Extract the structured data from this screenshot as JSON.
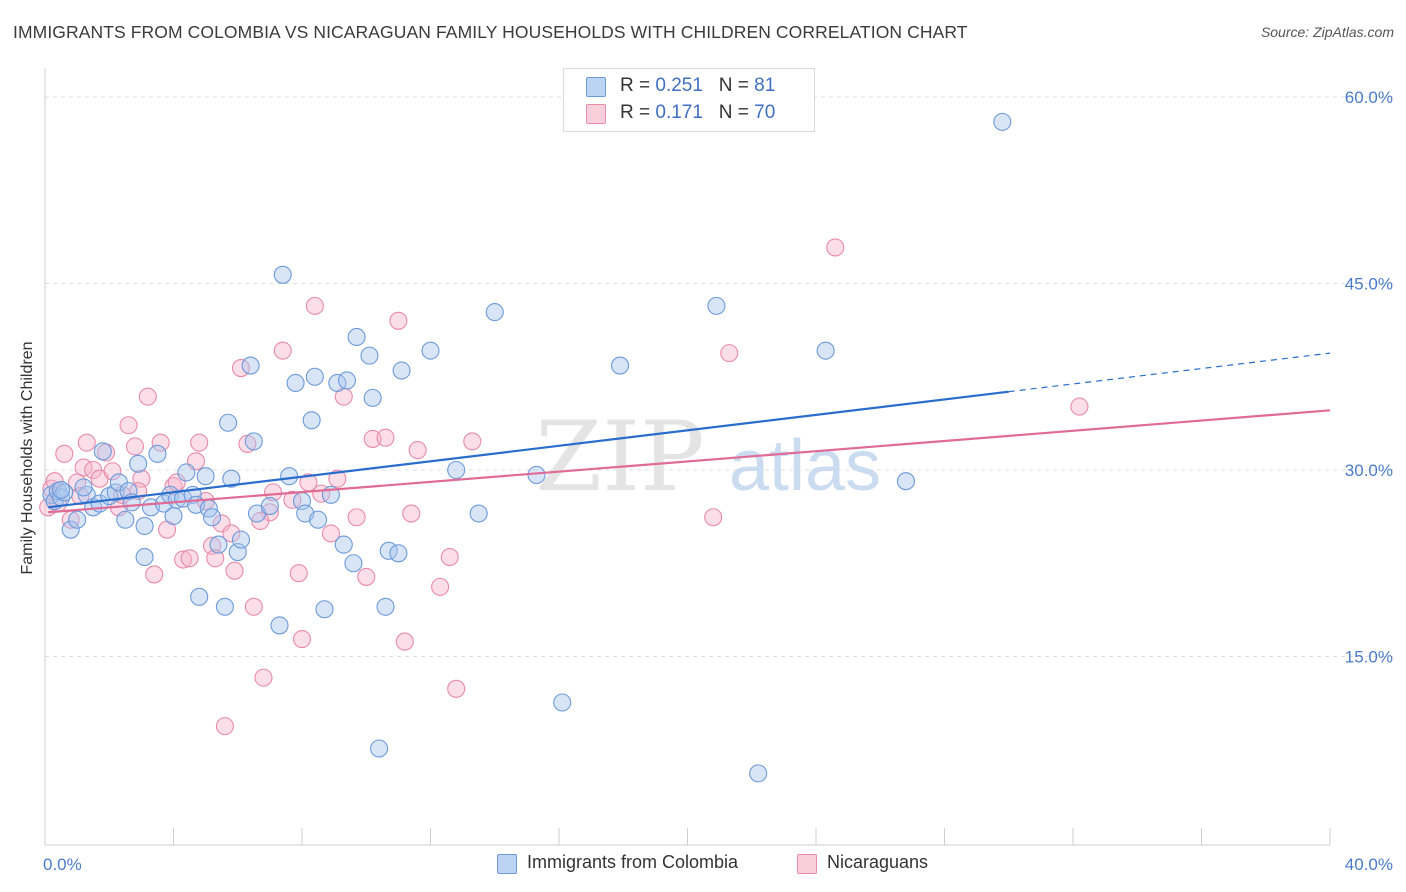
{
  "header": {
    "title": "IMMIGRANTS FROM COLOMBIA VS NICARAGUAN FAMILY HOUSEHOLDS WITH CHILDREN CORRELATION CHART",
    "source": "Source: ZipAtlas.com"
  },
  "legend_top": {
    "rows": [
      {
        "r_label": "R =",
        "r_value": "0.251",
        "n_label": "N =",
        "n_value": "81"
      },
      {
        "r_label": "R =",
        "r_value": "0.171",
        "n_label": "N =",
        "n_value": "70"
      }
    ]
  },
  "watermark": {
    "zip": "ZIP",
    "atlas": "atlas"
  },
  "colors": {
    "blue_fill": "#a9c6ee",
    "blue_stroke": "#6d9ad9",
    "blue_line": "#2a6dcc",
    "pink_fill": "#f6b6cb",
    "pink_stroke": "#e88aaa",
    "pink_line": "#e06b96",
    "axis_text": "#4a7cc9",
    "grid": "#dedede"
  },
  "chart_data": {
    "type": "scatter",
    "title": "IMMIGRANTS FROM COLOMBIA VS NICARAGUAN FAMILY HOUSEHOLDS WITH CHILDREN CORRELATION CHART",
    "xlabel": "",
    "ylabel": "Family Households with Children",
    "xlim": [
      0,
      40
    ],
    "ylim": [
      0,
      60
    ],
    "x_tick_labels": [
      "0.0%",
      "40.0%"
    ],
    "y_ticks": [
      15,
      30,
      45,
      60
    ],
    "y_tick_labels": [
      "15.0%",
      "30.0%",
      "45.0%",
      "60.0%"
    ],
    "grid": true,
    "legend_placement": "top-center",
    "series": [
      {
        "name": "Immigrants from Colombia",
        "color": "#6d9ad9",
        "trend": {
          "x": [
            0.1,
            30.0
          ],
          "y": [
            27.0,
            36.3
          ],
          "dashed_to": [
            40.0,
            39.4
          ]
        },
        "points": [
          [
            0.2,
            28.0
          ],
          [
            0.3,
            27.5
          ],
          [
            0.4,
            28.3
          ],
          [
            0.5,
            27.8
          ],
          [
            0.6,
            28.2
          ],
          [
            0.8,
            25.2
          ],
          [
            1.0,
            26.0
          ],
          [
            1.3,
            28.0
          ],
          [
            1.5,
            27.0
          ],
          [
            1.7,
            27.3
          ],
          [
            1.8,
            31.5
          ],
          [
            2.0,
            27.9
          ],
          [
            2.2,
            28.2
          ],
          [
            2.3,
            29.0
          ],
          [
            2.5,
            26.0
          ],
          [
            2.6,
            28.3
          ],
          [
            2.9,
            30.5
          ],
          [
            3.1,
            23.0
          ],
          [
            3.1,
            25.5
          ],
          [
            3.3,
            27.0
          ],
          [
            3.5,
            31.3
          ],
          [
            3.7,
            27.3
          ],
          [
            3.9,
            28.0
          ],
          [
            4.0,
            26.3
          ],
          [
            4.1,
            27.6
          ],
          [
            4.3,
            27.7
          ],
          [
            4.4,
            29.8
          ],
          [
            4.6,
            28.0
          ],
          [
            4.7,
            27.2
          ],
          [
            4.8,
            19.8
          ],
          [
            5.0,
            29.5
          ],
          [
            5.1,
            26.9
          ],
          [
            5.2,
            26.2
          ],
          [
            5.4,
            24.0
          ],
          [
            5.6,
            19.0
          ],
          [
            5.7,
            33.8
          ],
          [
            5.8,
            29.3
          ],
          [
            6.0,
            23.4
          ],
          [
            6.1,
            24.4
          ],
          [
            6.4,
            38.4
          ],
          [
            6.5,
            32.3
          ],
          [
            6.6,
            26.5
          ],
          [
            7.0,
            27.1
          ],
          [
            7.3,
            17.5
          ],
          [
            7.4,
            45.7
          ],
          [
            7.6,
            29.5
          ],
          [
            7.8,
            37.0
          ],
          [
            8.0,
            27.5
          ],
          [
            8.1,
            26.5
          ],
          [
            8.3,
            34.0
          ],
          [
            8.4,
            37.5
          ],
          [
            8.5,
            26.0
          ],
          [
            8.7,
            18.8
          ],
          [
            8.9,
            28.0
          ],
          [
            9.1,
            37.0
          ],
          [
            9.3,
            24.0
          ],
          [
            9.4,
            37.2
          ],
          [
            9.6,
            22.5
          ],
          [
            9.7,
            40.7
          ],
          [
            10.1,
            39.2
          ],
          [
            10.2,
            35.8
          ],
          [
            10.4,
            7.6
          ],
          [
            10.6,
            19.0
          ],
          [
            10.7,
            23.5
          ],
          [
            11.0,
            23.3
          ],
          [
            11.1,
            38.0
          ],
          [
            12.0,
            39.6
          ],
          [
            12.8,
            30.0
          ],
          [
            13.5,
            26.5
          ],
          [
            14.0,
            42.7
          ],
          [
            15.3,
            29.6
          ],
          [
            16.1,
            11.3
          ],
          [
            17.9,
            38.4
          ],
          [
            22.2,
            5.6
          ],
          [
            20.9,
            43.2
          ],
          [
            24.3,
            39.6
          ],
          [
            26.8,
            29.1
          ],
          [
            29.8,
            58.0
          ],
          [
            0.5,
            28.4
          ],
          [
            1.2,
            28.6
          ],
          [
            2.7,
            27.4
          ]
        ]
      },
      {
        "name": "Nicaraguans",
        "color": "#e88aaa",
        "trend": {
          "x": [
            0.1,
            40.0
          ],
          "y": [
            26.6,
            34.8
          ]
        },
        "points": [
          [
            0.1,
            27.0
          ],
          [
            0.2,
            28.5
          ],
          [
            0.3,
            29.1
          ],
          [
            0.4,
            27.3
          ],
          [
            0.6,
            31.3
          ],
          [
            0.8,
            26.0
          ],
          [
            1.0,
            29.0
          ],
          [
            1.2,
            30.2
          ],
          [
            1.3,
            32.2
          ],
          [
            1.5,
            30.0
          ],
          [
            1.7,
            29.3
          ],
          [
            1.9,
            31.4
          ],
          [
            2.1,
            29.9
          ],
          [
            2.3,
            27.0
          ],
          [
            2.4,
            28.0
          ],
          [
            2.6,
            33.6
          ],
          [
            2.8,
            31.9
          ],
          [
            3.0,
            29.3
          ],
          [
            3.2,
            35.9
          ],
          [
            3.4,
            21.6
          ],
          [
            3.6,
            32.2
          ],
          [
            3.8,
            25.2
          ],
          [
            4.0,
            28.7
          ],
          [
            4.1,
            29.0
          ],
          [
            4.3,
            22.8
          ],
          [
            4.5,
            22.9
          ],
          [
            4.7,
            30.7
          ],
          [
            4.8,
            32.2
          ],
          [
            5.0,
            27.5
          ],
          [
            5.2,
            23.9
          ],
          [
            5.3,
            22.9
          ],
          [
            5.5,
            25.7
          ],
          [
            5.6,
            9.4
          ],
          [
            5.8,
            24.9
          ],
          [
            5.9,
            21.9
          ],
          [
            6.1,
            38.2
          ],
          [
            6.3,
            32.1
          ],
          [
            6.5,
            19.0
          ],
          [
            6.8,
            13.3
          ],
          [
            7.0,
            26.6
          ],
          [
            7.1,
            28.2
          ],
          [
            7.4,
            39.6
          ],
          [
            7.7,
            27.6
          ],
          [
            7.9,
            21.7
          ],
          [
            8.0,
            16.4
          ],
          [
            8.2,
            29.0
          ],
          [
            8.4,
            43.2
          ],
          [
            8.6,
            28.1
          ],
          [
            8.9,
            24.9
          ],
          [
            9.1,
            29.3
          ],
          [
            9.3,
            35.9
          ],
          [
            9.7,
            26.2
          ],
          [
            10.0,
            21.4
          ],
          [
            10.2,
            32.5
          ],
          [
            10.6,
            32.6
          ],
          [
            11.0,
            42.0
          ],
          [
            11.2,
            16.2
          ],
          [
            11.4,
            26.5
          ],
          [
            11.6,
            31.6
          ],
          [
            12.3,
            20.6
          ],
          [
            12.6,
            23.0
          ],
          [
            12.8,
            12.4
          ],
          [
            13.3,
            32.3
          ],
          [
            20.8,
            26.2
          ],
          [
            21.3,
            39.4
          ],
          [
            24.6,
            47.9
          ],
          [
            32.2,
            35.1
          ],
          [
            1.1,
            27.9
          ],
          [
            2.9,
            28.3
          ],
          [
            6.7,
            25.9
          ]
        ]
      }
    ]
  },
  "legend_bottom": [
    {
      "label": "Immigrants from Colombia"
    },
    {
      "label": "Nicaraguans"
    }
  ]
}
